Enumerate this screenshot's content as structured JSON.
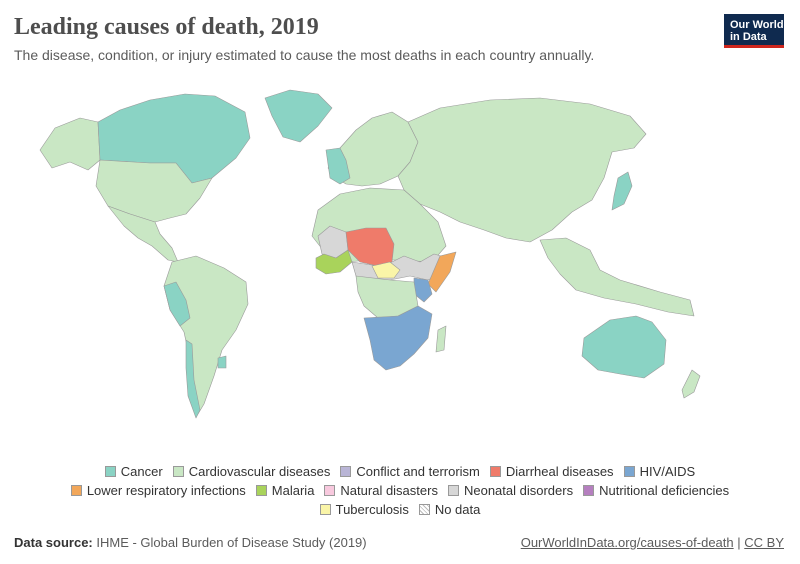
{
  "header": {
    "title": "Leading causes of death, 2019",
    "subtitle": "The disease, condition, or injury estimated to cause the most deaths in each country annually."
  },
  "logo": {
    "line1": "Our World",
    "line2": "in Data"
  },
  "legend": {
    "row1": [
      {
        "label": "Cancer",
        "color": "#8ad3c4"
      },
      {
        "label": "Cardiovascular diseases",
        "color": "#c9e7c4"
      },
      {
        "label": "Conflict and terrorism",
        "color": "#b9b5d6"
      },
      {
        "label": "Diarrheal diseases",
        "color": "#ef7b6a"
      },
      {
        "label": "HIV/AIDS",
        "color": "#7aa6d1"
      }
    ],
    "row2": [
      {
        "label": "Lower respiratory infections",
        "color": "#f2a75a"
      },
      {
        "label": "Malaria",
        "color": "#a9d35b"
      },
      {
        "label": "Natural disasters",
        "color": "#f8c9de"
      },
      {
        "label": "Neonatal disorders",
        "color": "#d7d7d7"
      },
      {
        "label": "Nutritional deficiencies",
        "color": "#b57fbf"
      }
    ],
    "row3": [
      {
        "label": "Tuberculosis",
        "color": "#faf5a8"
      },
      {
        "label": "No data",
        "color": "hatch"
      }
    ]
  },
  "footer": {
    "source_label": "Data source:",
    "source_text": "IHME - Global Burden of Disease Study (2019)",
    "link_text": "OurWorldInData.org/causes-of-death",
    "separator": "|",
    "license": "CC BY"
  },
  "colors": {
    "cancer": "#8ad3c4",
    "cardiovascular": "#c9e7c4",
    "diarrheal": "#ef7b6a",
    "hiv": "#7aa6d1",
    "lower_respiratory": "#f2a75a",
    "malaria": "#a9d35b",
    "neonatal": "#d7d7d7",
    "tuberculosis": "#faf5a8",
    "border": "#9a9a9a"
  }
}
